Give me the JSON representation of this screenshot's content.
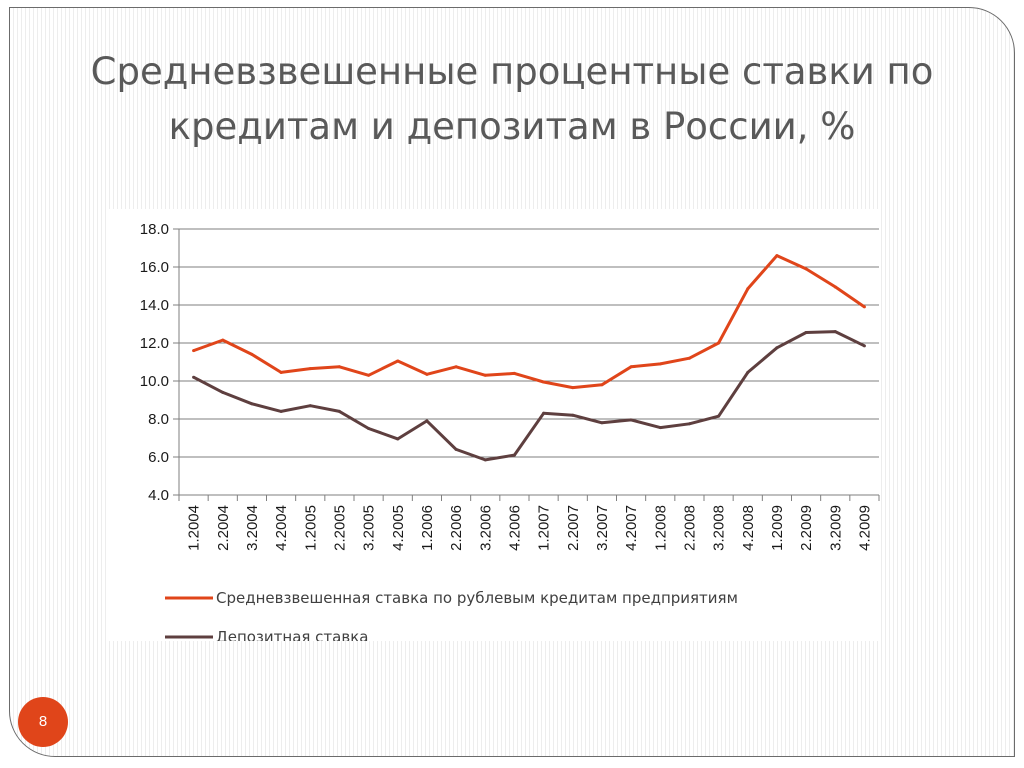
{
  "slide": {
    "title": "Средневзвешенные процентные ставки по кредитам и депозитам в России, %",
    "page_number": "8"
  },
  "colors": {
    "credit_series": "#e0451a",
    "deposit_series": "#5e3f3f",
    "page_badge": "#e0451a",
    "gridline": "#7f7f7f"
  },
  "chart_data": {
    "type": "line",
    "title": "",
    "xlabel": "",
    "ylabel": "",
    "ylim": [
      4.0,
      18.0
    ],
    "yticks": [
      "4.0",
      "6.0",
      "8.0",
      "10.0",
      "12.0",
      "14.0",
      "16.0",
      "18.0"
    ],
    "grid": true,
    "legend_position": "bottom",
    "categories": [
      "1.2004",
      "2.2004",
      "3.2004",
      "4.2004",
      "1.2005",
      "2.2005",
      "3.2005",
      "4.2005",
      "1.2006",
      "2.2006",
      "3.2006",
      "4.2006",
      "1.2007",
      "2.2007",
      "3.2007",
      "4.2007",
      "1.2008",
      "2.2008",
      "3.2008",
      "4.2008",
      "1.2009",
      "2.2009",
      "3.2009",
      "4.2009"
    ],
    "series": [
      {
        "name": "Средневзвешенная ставка по рублевым кредитам предприятиям",
        "values": [
          11.6,
          12.15,
          11.4,
          10.45,
          10.65,
          10.75,
          10.3,
          11.05,
          10.35,
          10.75,
          10.3,
          10.4,
          9.95,
          9.65,
          9.8,
          10.75,
          10.9,
          11.2,
          12.0,
          14.85,
          16.6,
          15.9,
          14.95,
          13.9
        ]
      },
      {
        "name": "Депозитная ставка",
        "values": [
          10.2,
          9.4,
          8.8,
          8.4,
          8.7,
          8.4,
          7.5,
          6.95,
          7.9,
          6.4,
          5.85,
          6.1,
          8.3,
          8.2,
          7.8,
          7.95,
          7.55,
          7.75,
          8.15,
          10.45,
          11.75,
          12.55,
          12.6,
          11.85
        ]
      }
    ]
  }
}
